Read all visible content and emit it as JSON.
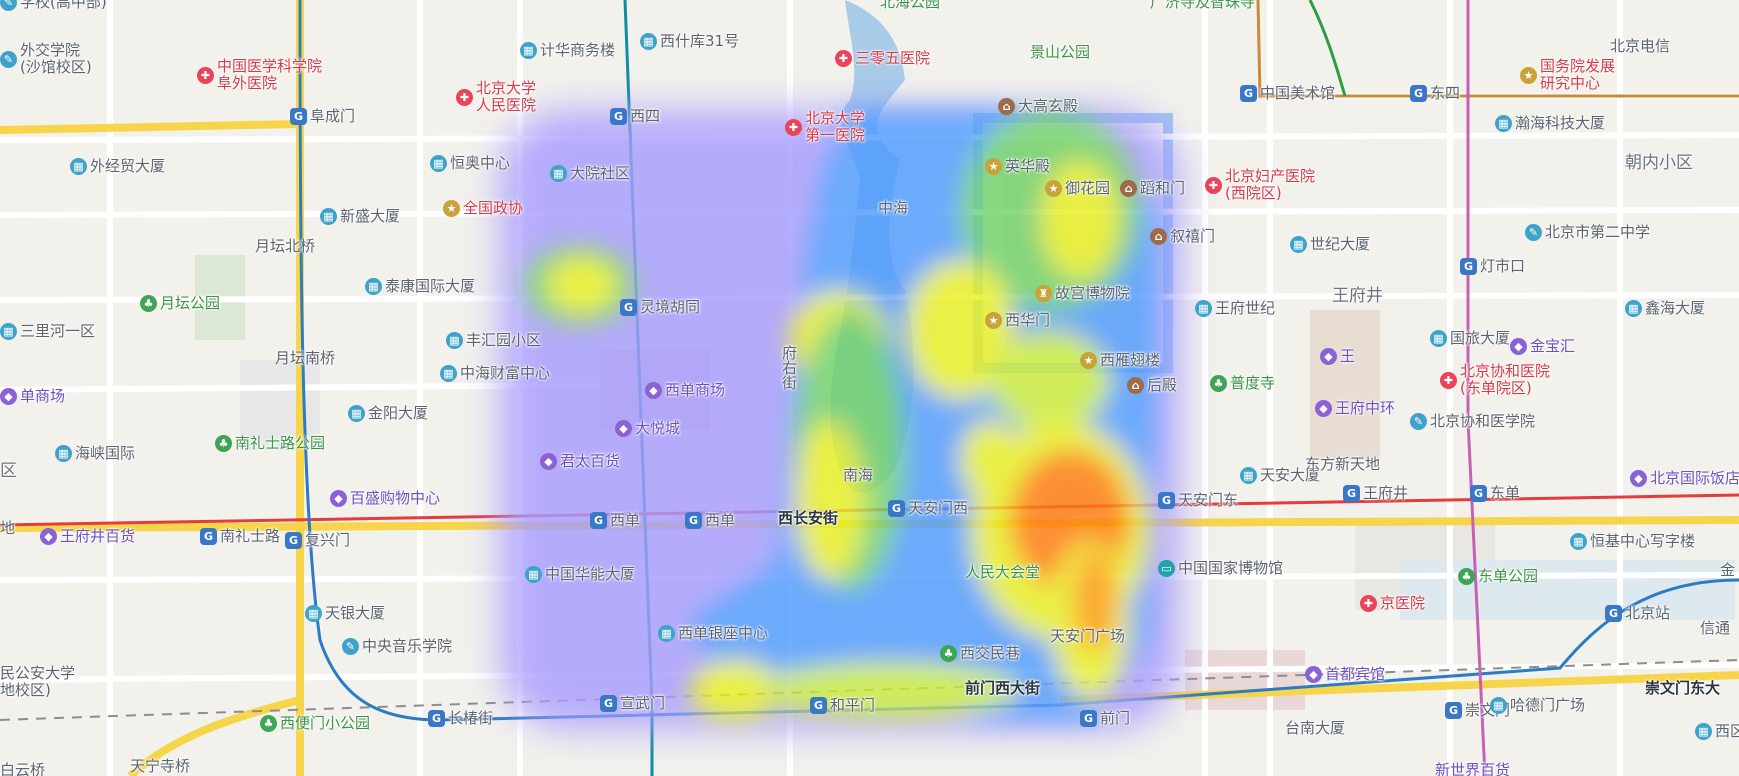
{
  "map": {
    "heat_colors": [
      "#8c80ff",
      "#4f9bff",
      "#6fd26a",
      "#e8f020",
      "#ff7a10"
    ],
    "pois": [
      {
        "id": "poi-school-top",
        "text": "学校(高中部)",
        "icon": "school-icon",
        "style": "pale"
      },
      {
        "id": "poi-beihai",
        "text": "北海公园",
        "icon": "",
        "style": "green"
      },
      {
        "id": "poi-guangji",
        "text": "广济寺及智珠寺",
        "icon": "",
        "style": "green"
      },
      {
        "id": "poi-waijiao",
        "text": "外交学院",
        "icon": "school-icon",
        "style": "pale",
        "line2": "(沙馆校区)"
      },
      {
        "id": "poi-zhongyi",
        "text": "中国医学科学院",
        "icon": "hospital-icon",
        "style": "red",
        "line2": "阜外医院"
      },
      {
        "id": "poi-jihua",
        "text": "计华商务楼",
        "icon": "building-icon",
        "style": "pale"
      },
      {
        "id": "poi-xishiku",
        "text": "西什库31号",
        "icon": "building-icon",
        "style": "pale"
      },
      {
        "id": "poi-sanlingwu",
        "text": "三零五医院",
        "icon": "hospital-icon",
        "style": "red"
      },
      {
        "id": "poi-jingshan",
        "text": "景山公园",
        "icon": "",
        "style": "green"
      },
      {
        "id": "poi-meishuguan",
        "text": "中国美术馆",
        "icon": "metro-icon",
        "style": "pale"
      },
      {
        "id": "poi-dongsi",
        "text": "东四",
        "icon": "metro-icon",
        "style": "pale"
      },
      {
        "id": "poi-guowuyuan",
        "text": "国务院发展",
        "icon": "landmark-icon",
        "style": "red",
        "line2": "研究中心"
      },
      {
        "id": "poi-beijingdianxin",
        "text": "北京电信",
        "icon": "",
        "style": "pale"
      },
      {
        "id": "poi-fuchengmen",
        "text": "阜成门",
        "icon": "metro-icon",
        "style": "pale"
      },
      {
        "id": "poi-beida-renmin",
        "text": "北京大学",
        "icon": "hospital-icon",
        "style": "red",
        "line2": "人民医院"
      },
      {
        "id": "poi-xisi",
        "text": "西四",
        "icon": "metro-icon",
        "style": "pale"
      },
      {
        "id": "poi-beida-diyi",
        "text": "北京大学",
        "icon": "hospital-icon",
        "style": "red",
        "line2": "第一医院"
      },
      {
        "id": "poi-daxuandian",
        "text": "大高玄殿",
        "icon": "temple-icon",
        "style": "pale"
      },
      {
        "id": "poi-hanhai",
        "text": "瀚海科技大厦",
        "icon": "building-icon",
        "style": "pale"
      },
      {
        "id": "poi-waijingmao",
        "text": "外经贸大厦",
        "icon": "building-icon",
        "style": "pale"
      },
      {
        "id": "poi-hengao",
        "text": "恒奥中心",
        "icon": "building-icon",
        "style": "pale"
      },
      {
        "id": "poi-dayuan",
        "text": "大院社区",
        "icon": "building-icon",
        "style": "pale"
      },
      {
        "id": "poi-zhonghai",
        "text": "中海",
        "icon": "",
        "style": "pale"
      },
      {
        "id": "poi-yinghua",
        "text": "英华殿",
        "icon": "landmark-icon",
        "style": "pale"
      },
      {
        "id": "poi-yuhuayuan",
        "text": "御花园",
        "icon": "landmark-icon",
        "style": "pale"
      },
      {
        "id": "poi-zhenhemen",
        "text": "蹈和门",
        "icon": "temple-icon",
        "style": "pale"
      },
      {
        "id": "poi-fuchan",
        "text": "北京妇产医院",
        "icon": "hospital-icon",
        "style": "red",
        "line2": "(西院区)"
      },
      {
        "id": "poi-chaonei",
        "text": "朝内小区",
        "icon": "",
        "style": "district"
      },
      {
        "id": "poi-quanguozhengxie",
        "text": "全国政协",
        "icon": "landmark-icon",
        "style": "red"
      },
      {
        "id": "poi-xinsheng",
        "text": "新盛大厦",
        "icon": "building-icon",
        "style": "pale"
      },
      {
        "id": "poi-xuxi",
        "text": "叙禧门",
        "icon": "temple-icon",
        "style": "pale"
      },
      {
        "id": "poi-shiji",
        "text": "世纪大厦",
        "icon": "building-icon",
        "style": "pale"
      },
      {
        "id": "poi-erzhong",
        "text": "北京市第二中学",
        "icon": "school-icon",
        "style": "pale"
      },
      {
        "id": "poi-yuetanbei",
        "text": "月坛北桥",
        "icon": "",
        "style": "pale"
      },
      {
        "id": "poi-taikang",
        "text": "泰康国际大厦",
        "icon": "building-icon",
        "style": "pale"
      },
      {
        "id": "poi-gugong",
        "text": "故宫博物院",
        "icon": "palace-icon",
        "style": "pale"
      },
      {
        "id": "poi-dengshikou",
        "text": "灯市口",
        "icon": "metro-icon",
        "style": "pale"
      },
      {
        "id": "poi-yuetan",
        "text": "月坛公园",
        "icon": "park-icon",
        "style": "green"
      },
      {
        "id": "poi-lingjing",
        "text": "灵境胡同",
        "icon": "metro-icon",
        "style": "pale"
      },
      {
        "id": "poi-wangfujing",
        "text": "王府井",
        "icon": "",
        "style": "district"
      },
      {
        "id": "poi-wangfushiji",
        "text": "王府世纪",
        "icon": "building-icon",
        "style": "pale"
      },
      {
        "id": "poi-xinhai",
        "text": "鑫海大厦",
        "icon": "building-icon",
        "style": "pale"
      },
      {
        "id": "poi-sanlihe",
        "text": "三里河一区",
        "icon": "building-icon",
        "style": "pale"
      },
      {
        "id": "poi-fenghuiyuan",
        "text": "丰汇园小区",
        "icon": "building-icon",
        "style": "pale"
      },
      {
        "id": "poi-xihuamen",
        "text": "西华门",
        "icon": "landmark-icon",
        "style": "pale"
      },
      {
        "id": "poi-guolv",
        "text": "国旅大厦",
        "icon": "building-icon",
        "style": "pale"
      },
      {
        "id": "poi-jinbaohui",
        "text": "金宝汇",
        "icon": "shop-icon",
        "style": "purple"
      },
      {
        "id": "poi-yuetannan",
        "text": "月坛南桥",
        "icon": "",
        "style": "pale"
      },
      {
        "id": "poi-zhonghaicaifu",
        "text": "中海财富中心",
        "icon": "building-icon",
        "style": "pale"
      },
      {
        "id": "poi-fuyoujie",
        "text": "府右街",
        "icon": "",
        "style": "pale",
        "vertical": true
      },
      {
        "id": "poi-xiyanchi",
        "text": "西雁翅楼",
        "icon": "landmark-icon",
        "style": "pale"
      },
      {
        "id": "poi-pudusi",
        "text": "普度寺",
        "icon": "park-icon",
        "style": "green"
      },
      {
        "id": "poi-wang",
        "text": "王",
        "icon": "shop-icon",
        "style": "purple"
      },
      {
        "id": "poi-xiehe",
        "text": "北京协和医院",
        "icon": "hospital-icon",
        "style": "red",
        "line2": "(东单院区)"
      },
      {
        "id": "poi-shangchang",
        "text": "单商场",
        "icon": "shop-icon",
        "style": "purple"
      },
      {
        "id": "poi-xidanshangchang",
        "text": "西单商场",
        "icon": "shop-icon",
        "style": "purple"
      },
      {
        "id": "poi-houdian",
        "text": "后殿",
        "icon": "temple-icon",
        "style": "pale"
      },
      {
        "id": "poi-wangfuzhonghuan",
        "text": "王府中环",
        "icon": "shop-icon",
        "style": "purple"
      },
      {
        "id": "poi-jinyang",
        "text": "金阳大厦",
        "icon": "building-icon",
        "style": "pale"
      },
      {
        "id": "poi-dayuecheng",
        "text": "大悦城",
        "icon": "shop-icon",
        "style": "purple"
      },
      {
        "id": "poi-xiehe-yixue",
        "text": "北京协和医学院",
        "icon": "school-icon",
        "style": "pale"
      },
      {
        "id": "poi-nanlishilu-park",
        "text": "南礼士路公园",
        "icon": "park-icon",
        "style": "green"
      },
      {
        "id": "poi-haixia",
        "text": "海峡国际",
        "icon": "building-icon",
        "style": "pale"
      },
      {
        "id": "poi-juntai",
        "text": "君太百货",
        "icon": "shop-icon",
        "style": "purple"
      },
      {
        "id": "poi-nanhai",
        "text": "南海",
        "icon": "",
        "style": "pale"
      },
      {
        "id": "poi-tiananda",
        "text": "天安大厦",
        "icon": "building-icon",
        "style": "pale"
      },
      {
        "id": "poi-dongfang",
        "text": "东方新天地",
        "icon": "",
        "style": "pale"
      },
      {
        "id": "poi-guojifandian",
        "text": "北京国际饭店",
        "icon": "shop-icon",
        "style": "purple"
      },
      {
        "id": "poi-qu",
        "text": "区",
        "icon": "",
        "style": "district"
      },
      {
        "id": "poi-baisheng",
        "text": "百盛购物中心",
        "icon": "shop-icon",
        "style": "purple"
      },
      {
        "id": "poi-tiananmenxi",
        "text": "天安门西",
        "icon": "metro-icon",
        "style": "pale"
      },
      {
        "id": "poi-tiananmendong",
        "text": "天安门东",
        "icon": "metro-icon",
        "style": "pale"
      },
      {
        "id": "poi-wangfujing-metro",
        "text": "王府井",
        "icon": "metro-icon",
        "style": "pale"
      },
      {
        "id": "poi-dongdan",
        "text": "东单",
        "icon": "metro-icon",
        "style": "pale"
      },
      {
        "id": "poi-di",
        "text": "地",
        "icon": "",
        "style": "pale"
      },
      {
        "id": "poi-wangfujingbaihuo",
        "text": "王府井百货",
        "icon": "shop-icon",
        "style": "purple"
      },
      {
        "id": "poi-nanlishilu",
        "text": "南礼士路",
        "icon": "metro-icon",
        "style": "pale"
      },
      {
        "id": "poi-fuxingmen",
        "text": "复兴门",
        "icon": "metro-icon",
        "style": "pale"
      },
      {
        "id": "poi-xidan",
        "text": "西单",
        "icon": "metro-icon",
        "style": "pale"
      },
      {
        "id": "poi-xidan2",
        "text": "西单",
        "icon": "metro-icon",
        "style": "pale"
      },
      {
        "id": "poi-xichanganjie",
        "text": "西长安街",
        "icon": "",
        "style": "dark"
      },
      {
        "id": "poi-hengji",
        "text": "恒基中心写字楼",
        "icon": "building-icon",
        "style": "pale"
      },
      {
        "id": "poi-huaneng",
        "text": "中国华能大厦",
        "icon": "building-icon",
        "style": "pale"
      },
      {
        "id": "poi-renmindahuitang",
        "text": "人民大会堂",
        "icon": "",
        "style": "green"
      },
      {
        "id": "poi-guobo",
        "text": "中国国家博物馆",
        "icon": "museum-icon",
        "style": "pale"
      },
      {
        "id": "poi-dongdanpark",
        "text": "东单公园",
        "icon": "park-icon",
        "style": "green"
      },
      {
        "id": "poi-jin",
        "text": "金",
        "icon": "",
        "style": "pale"
      },
      {
        "id": "poi-tianyin",
        "text": "天银大厦",
        "icon": "building-icon",
        "style": "pale"
      },
      {
        "id": "poi-tiananmenguangchang",
        "text": "天安门广场",
        "icon": "",
        "style": "pale"
      },
      {
        "id": "poi-jingyiyuan",
        "text": "京医院",
        "icon": "hospital-icon",
        "style": "red"
      },
      {
        "id": "poi-beijingzhan",
        "text": "北京站",
        "icon": "metro-icon",
        "style": "pale"
      },
      {
        "id": "poi-xinxin",
        "text": "信通",
        "icon": "",
        "style": "pale"
      },
      {
        "id": "poi-yinyue",
        "text": "中央音乐学院",
        "icon": "school-icon",
        "style": "pale"
      },
      {
        "id": "poi-xidanyinzuo",
        "text": "西单银座中心",
        "icon": "building-icon",
        "style": "pale"
      },
      {
        "id": "poi-xijiaominxiang",
        "text": "西交民巷",
        "icon": "park-icon",
        "style": "pale"
      },
      {
        "id": "poi-shoudubinguan",
        "text": "首都宾馆",
        "icon": "shop-icon",
        "style": "purple"
      },
      {
        "id": "poi-chongwenmendong",
        "text": "崇文门东大",
        "icon": "",
        "style": "dark"
      },
      {
        "id": "poi-gongan",
        "text": "民公安大学",
        "icon": "",
        "style": "pale",
        "line2": "地校区)"
      },
      {
        "id": "poi-changchunjie",
        "text": "长椿街",
        "icon": "metro-icon",
        "style": "pale"
      },
      {
        "id": "poi-xuanwumen",
        "text": "宣武门",
        "icon": "metro-icon",
        "style": "pale"
      },
      {
        "id": "poi-hepingmen",
        "text": "和平门",
        "icon": "metro-icon",
        "style": "pale"
      },
      {
        "id": "poi-qianmenxidajie",
        "text": "前门西大街",
        "icon": "",
        "style": "dark"
      },
      {
        "id": "poi-qianmen",
        "text": "前门",
        "icon": "metro-icon",
        "style": "pale"
      },
      {
        "id": "poi-chongwenmen",
        "text": "崇文门",
        "icon": "metro-icon",
        "style": "pale"
      },
      {
        "id": "poi-hademen",
        "text": "哈德门广场",
        "icon": "building-icon",
        "style": "pale"
      },
      {
        "id": "poi-xibianmen",
        "text": "西便门小公园",
        "icon": "park-icon",
        "style": "green"
      },
      {
        "id": "poi-tainan",
        "text": "台南大厦",
        "icon": "",
        "style": "pale"
      },
      {
        "id": "poi-xiqu",
        "text": "西区",
        "icon": "building-icon",
        "style": "pale"
      },
      {
        "id": "poi-baiyunqiao",
        "text": "白云桥",
        "icon": "",
        "style": "pale"
      },
      {
        "id": "poi-tianningsi",
        "text": "天宁寺桥",
        "icon": "",
        "style": "pale"
      },
      {
        "id": "poi-xinshijie",
        "text": "新世界百货",
        "icon": "",
        "style": "purple"
      }
    ]
  }
}
